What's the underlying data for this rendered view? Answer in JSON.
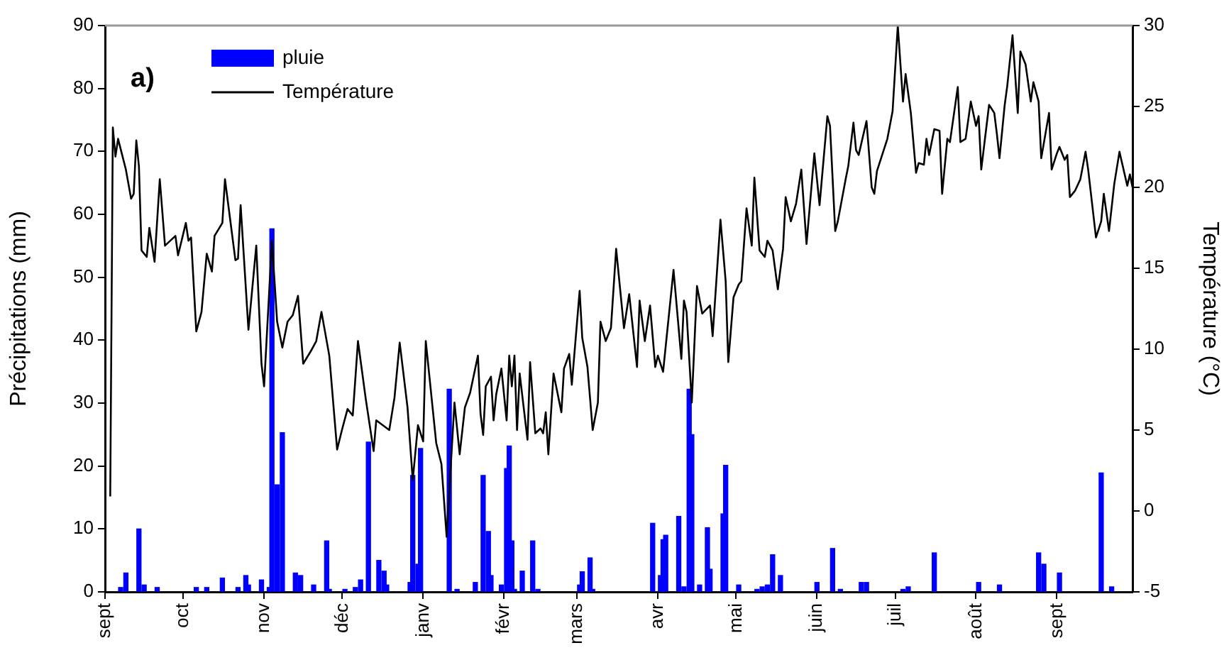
{
  "chart_data": {
    "type": "bar",
    "ylabel": "Précipitations (mm)",
    "y2label": "Température (°C)",
    "annotations": [
      "a)"
    ],
    "legend": "top left",
    "marker": "none",
    "line_style": "solid",
    "categories": [
      "sept",
      null,
      null,
      null,
      null,
      null,
      null,
      null,
      null,
      null,
      null,
      null,
      null,
      null,
      null,
      null,
      null,
      null,
      null,
      null,
      null,
      null,
      null,
      null,
      null,
      null,
      null,
      null,
      null,
      null,
      "oct",
      null,
      null,
      null,
      null,
      null,
      null,
      null,
      null,
      null,
      null,
      null,
      null,
      null,
      null,
      null,
      null,
      null,
      null,
      null,
      null,
      null,
      null,
      null,
      null,
      null,
      null,
      null,
      null,
      null,
      null,
      "nov",
      null,
      null,
      null,
      null,
      null,
      null,
      null,
      null,
      null,
      null,
      null,
      null,
      null,
      null,
      null,
      null,
      null,
      null,
      null,
      null,
      null,
      null,
      null,
      null,
      null,
      null,
      null,
      null,
      null,
      "déc",
      null,
      null,
      null,
      null,
      null,
      null,
      null,
      null,
      null,
      null,
      null,
      null,
      null,
      null,
      null,
      null,
      null,
      null,
      null,
      null,
      null,
      null,
      null,
      null,
      null,
      null,
      null,
      null,
      null,
      null,
      "janv",
      null,
      null,
      null,
      null,
      null,
      null,
      null,
      null,
      null,
      null,
      null,
      null,
      null,
      null,
      null,
      null,
      null,
      null,
      null,
      null,
      null,
      null,
      null,
      null,
      null,
      null,
      null,
      null,
      null,
      null,
      "févr",
      null,
      null,
      null,
      null,
      null,
      null,
      null,
      null,
      null,
      null,
      null,
      null,
      null,
      null,
      null,
      null,
      null,
      null,
      null,
      null,
      null,
      null,
      null,
      null,
      null,
      null,
      null,
      "mars",
      null,
      null,
      null,
      null,
      null,
      null,
      null,
      null,
      null,
      null,
      null,
      null,
      null,
      null,
      null,
      null,
      null,
      null,
      null,
      null,
      null,
      null,
      null,
      null,
      null,
      null,
      null,
      null,
      null,
      null,
      "avr",
      null,
      null,
      null,
      null,
      null,
      null,
      null,
      null,
      null,
      null,
      null,
      null,
      null,
      null,
      null,
      null,
      null,
      null,
      null,
      null,
      null,
      null,
      null,
      null,
      null,
      null,
      null,
      null,
      null,
      "mai",
      null,
      null,
      null,
      null,
      null,
      null,
      null,
      null,
      null,
      null,
      null,
      null,
      null,
      null,
      null,
      null,
      null,
      null,
      null,
      null,
      null,
      null,
      null,
      null,
      null,
      null,
      null,
      null,
      null,
      null,
      "juin",
      null,
      null,
      null,
      null,
      null,
      null,
      null,
      null,
      null,
      null,
      null,
      null,
      null,
      null,
      null,
      null,
      null,
      null,
      null,
      null,
      null,
      null,
      null,
      null,
      null,
      null,
      null,
      null,
      null,
      "juil",
      null,
      null,
      null,
      null,
      null,
      null,
      null,
      null,
      null,
      null,
      null,
      null,
      null,
      null,
      null,
      null,
      null,
      null,
      null,
      null,
      null,
      null,
      null,
      null,
      null,
      null,
      null,
      null,
      null,
      null,
      "août",
      null,
      null,
      null,
      null,
      null,
      null,
      null,
      null,
      null,
      null,
      null,
      null,
      null,
      null,
      null,
      null,
      null,
      null,
      null,
      null,
      null,
      null,
      null,
      null,
      null,
      null,
      null,
      null,
      null,
      null,
      "sept",
      null,
      null,
      null,
      null,
      null,
      null,
      null,
      null,
      null,
      null,
      null,
      null,
      null,
      null,
      null,
      null,
      null,
      null,
      null,
      null,
      null,
      null,
      null,
      null,
      null,
      null,
      null,
      null,
      null
    ],
    "ylim": [
      0,
      90
    ],
    "yticks": [
      0,
      10,
      20,
      30,
      40,
      50,
      60,
      70,
      80,
      90
    ],
    "y2lim": [
      -5,
      30
    ],
    "y2ticks": [
      -5,
      0,
      5,
      10,
      15,
      20,
      25,
      30
    ],
    "series": [
      {
        "name": "pluie",
        "color": "#0000ff",
        "values": [
          null,
          null,
          null,
          null,
          null,
          null,
          0.7,
          null,
          3,
          null,
          null,
          null,
          null,
          10,
          null,
          1.1,
          null,
          null,
          null,
          null,
          0.7,
          null,
          null,
          null,
          null,
          null,
          null,
          null,
          null,
          null,
          null,
          null,
          null,
          null,
          null,
          0.7,
          null,
          null,
          null,
          0.7,
          null,
          null,
          null,
          null,
          null,
          2.2,
          null,
          null,
          null,
          null,
          null,
          0.7,
          null,
          null,
          2.6,
          1.1,
          null,
          null,
          null,
          null,
          1.9,
          null,
          null,
          0.7,
          57.7,
          null,
          17,
          null,
          25.3,
          null,
          null,
          null,
          null,
          3,
          null,
          2.6,
          null,
          null,
          null,
          null,
          1.1,
          null,
          null,
          null,
          null,
          8.1,
          0.4,
          null,
          null,
          null,
          null,
          null,
          0.4,
          null,
          null,
          null,
          0.7,
          null,
          1.9,
          null,
          null,
          23.8,
          null,
          null,
          null,
          5,
          null,
          3.3,
          1.1,
          null,
          null,
          null,
          null,
          null,
          null,
          null,
          null,
          1.5,
          18.5,
          null,
          4.4,
          22.8,
          null,
          null,
          null,
          null,
          null,
          null,
          null,
          null,
          null,
          null,
          32.2,
          null,
          null,
          0.4,
          null,
          null,
          null,
          null,
          null,
          null,
          1.5,
          null,
          null,
          18.5,
          null,
          9.6,
          2.6,
          null,
          null,
          null,
          1.1,
          null,
          19.6,
          23.2,
          8.1,
          0.4,
          null,
          null,
          3.3,
          null,
          null,
          null,
          8.1,
          null,
          0.4,
          null,
          null,
          null,
          null,
          null,
          null,
          null,
          null,
          null,
          null,
          null,
          null,
          null,
          null,
          null,
          1.1,
          3.2,
          null,
          null,
          5.4,
          0.4,
          null,
          null,
          null,
          null,
          null,
          null,
          null,
          null,
          null,
          null,
          null,
          null,
          null,
          null,
          null,
          null,
          null,
          null,
          null,
          null,
          null,
          null,
          10.9,
          null,
          null,
          2.6,
          8.3,
          9,
          null,
          null,
          null,
          null,
          12,
          null,
          0.8,
          null,
          32.2,
          25,
          null,
          null,
          1.1,
          null,
          null,
          10.2,
          3.6,
          null,
          null,
          null,
          null,
          12.4,
          20.1,
          null,
          null,
          null,
          null,
          1.1,
          null,
          null,
          null,
          null,
          null,
          null,
          0.4,
          null,
          0.8,
          null,
          1.1,
          null,
          5.9,
          null,
          null,
          2.6,
          null,
          null,
          null,
          null,
          null,
          null,
          null,
          null,
          null,
          null,
          null,
          null,
          null,
          1.5,
          null,
          null,
          null,
          null,
          null,
          6.9,
          null,
          null,
          0.4,
          null,
          null,
          null,
          null,
          null,
          null,
          null,
          1.5,
          null,
          1.5,
          null,
          null,
          null,
          null,
          null,
          null,
          null,
          null,
          null,
          null,
          null,
          null,
          null,
          0.4,
          null,
          0.8,
          null,
          null,
          null,
          null,
          null,
          null,
          null,
          null,
          null,
          6.2,
          null,
          null,
          null,
          null,
          null,
          null,
          null,
          null,
          null,
          null,
          null,
          null,
          null,
          null,
          null,
          null,
          1.5,
          null,
          null,
          null,
          null,
          null,
          null,
          null,
          1.1,
          null,
          null,
          null,
          null,
          null,
          null,
          null,
          null,
          null,
          null,
          null,
          null,
          null,
          null,
          6.2,
          null,
          4.4,
          null,
          null,
          null,
          null,
          null,
          3,
          null,
          null,
          null,
          null,
          null,
          null,
          null,
          null,
          null,
          null,
          null,
          null,
          null,
          null,
          null,
          18.9,
          null,
          null,
          null,
          0.8,
          null,
          null,
          null,
          null,
          null,
          null,
          null,
          null
        ]
      },
      {
        "name": "Température",
        "type": "line",
        "axis": "y2",
        "color": "#000000",
        "values": [
          null,
          null,
          0.9,
          23.7,
          21.9,
          23,
          null,
          null,
          21.1,
          null,
          19.3,
          19.6,
          22.9,
          21.3,
          16.1,
          null,
          15.7,
          17.5,
          null,
          15.4,
          null,
          20.5,
          null,
          16.4,
          null,
          null,
          null,
          17,
          15.8,
          null,
          null,
          17.8,
          16.7,
          16.9,
          null,
          11.1,
          null,
          12.3,
          null,
          15.9,
          null,
          14.8,
          17,
          null,
          null,
          17.8,
          20.5,
          null,
          null,
          null,
          15.5,
          15.6,
          18.9,
          null,
          null,
          11.2,
          null,
          null,
          16.4,
          null,
          9.1,
          7.7,
          null,
          null,
          16.7,
          null,
          11.7,
          null,
          10.1,
          null,
          11.7,
          null,
          12.1,
          null,
          13.3,
          null,
          9.1,
          null,
          null,
          9.9,
          null,
          10.5,
          null,
          12.3,
          null,
          null,
          9.6,
          null,
          null,
          3.8,
          null,
          5.1,
          null,
          6.3,
          null,
          5.9,
          null,
          10.5,
          null,
          null,
          6.9,
          null,
          null,
          3.7,
          5.6,
          null,
          null,
          null,
          null,
          5,
          null,
          7,
          null,
          10.4,
          null,
          null,
          6.4,
          null,
          1.9,
          null,
          5.3,
          null,
          4.3,
          10.5,
          null,
          null,
          null,
          4.2,
          null,
          2.9,
          null,
          -1.6,
          null,
          null,
          6.7,
          null,
          3.5,
          null,
          6.4,
          null,
          7.3,
          null,
          null,
          9.6,
          6,
          4.7,
          7.7,
          null,
          8.3,
          5.6,
          7.2,
          null,
          8.8,
          null,
          5.6,
          9.6,
          7.7,
          9.6,
          5,
          8.5,
          null,
          null,
          4.4,
          9.2,
          null,
          4.8,
          null,
          5.1,
          4.8,
          6.1,
          3.5,
          null,
          8.5,
          null,
          null,
          6.1,
          8.8,
          null,
          9.7,
          7.8,
          null,
          null,
          13.6,
          10.7,
          null,
          8.9,
          null,
          5,
          null,
          6.7,
          11.7,
          null,
          10.5,
          null,
          11.3,
          null,
          16.2,
          null,
          null,
          11.3,
          null,
          13.4,
          null,
          null,
          8.9,
          13,
          null,
          10.5,
          null,
          12.7,
          null,
          8.9,
          9.6,
          null,
          8.6,
          null,
          null,
          null,
          14.9,
          null,
          null,
          9.4,
          13,
          12.3,
          null,
          6.7,
          null,
          13.9,
          null,
          12.2,
          null,
          null,
          12.7,
          10.8,
          null,
          null,
          18,
          null,
          14.2,
          9.2,
          null,
          13.2,
          null,
          14,
          14.2,
          null,
          18.7,
          null,
          16.4,
          20.6,
          null,
          16.1,
          null,
          15.7,
          16.7,
          null,
          16.1,
          null,
          13.7,
          null,
          16.2,
          19.4,
          null,
          17.9,
          null,
          19,
          null,
          21.1,
          null,
          16.5,
          null,
          null,
          22.1,
          null,
          18.9,
          null,
          null,
          24.4,
          23.8,
          null,
          17.3,
          17.9,
          null,
          null,
          20.5,
          21.3,
          null,
          24,
          22.3,
          22,
          null,
          null,
          24.1,
          null,
          20,
          19.6,
          21,
          null,
          null,
          null,
          23,
          null,
          24.7,
          null,
          30,
          null,
          25.3,
          27,
          null,
          24.6,
          null,
          20.9,
          21.5,
          null,
          21.4,
          23,
          22,
          null,
          23.6,
          null,
          23.5,
          19.6,
          null,
          23,
          22.8,
          null,
          null,
          26.2,
          22.8,
          null,
          23,
          null,
          25.3,
          null,
          23.8,
          24.4,
          21.1,
          null,
          null,
          25.1,
          null,
          24.6,
          23.3,
          21.8,
          null,
          25.1,
          26.3,
          null,
          29.4,
          null,
          24.6,
          28.4,
          null,
          27.6,
          null,
          25.3,
          26.5,
          null,
          25.3,
          21.8,
          null,
          null,
          24.6,
          21.1,
          null,
          22.1,
          22.5,
          null,
          21.7,
          22,
          19.4,
          null,
          19.8,
          null,
          20.5,
          null,
          22.2,
          21.1,
          null,
          null,
          16.9,
          null,
          17.9,
          19.6,
          null,
          17.3,
          null,
          20.2,
          null,
          22.2,
          null,
          null,
          20.1,
          20.8,
          20
        ]
      }
    ]
  }
}
